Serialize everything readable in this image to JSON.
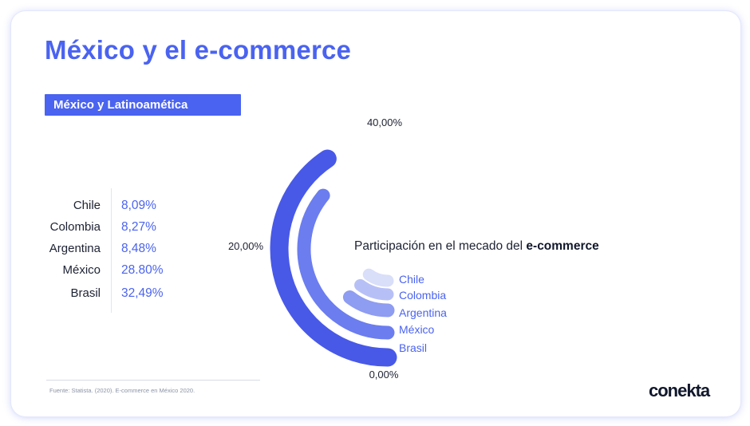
{
  "header": {
    "title": "México y el e-commerce",
    "badge": "México y Latinoamética"
  },
  "table": [
    {
      "country": "Chile",
      "value": "8,09%"
    },
    {
      "country": "Colombia",
      "value": "8,27%"
    },
    {
      "country": "Argentina",
      "value": "8,48%"
    },
    {
      "country": "México",
      "value": "28.80%"
    },
    {
      "country": "Brasil",
      "value": "32,49%"
    }
  ],
  "footer": {
    "source": "Fuente: Statista. (2020). E-commerce en México 2020.",
    "logo": "conekta"
  },
  "chart_data": {
    "type": "radial-bar",
    "title_prefix": "Participación en el mecado del ",
    "title_bold": "e-commerce",
    "tick_labels": [
      "40,00%",
      "20,00%",
      "0,00%"
    ],
    "range": [
      0,
      40
    ],
    "categories": [
      "Chile",
      "Colombia",
      "Argentina",
      "México",
      "Brasil"
    ],
    "values": [
      8.09,
      8.27,
      8.48,
      28.8,
      32.49
    ],
    "colors": [
      "#d9def9",
      "#b7c0f6",
      "#8e9cf1",
      "#6b7def",
      "#4859e8"
    ],
    "legend_color": "#4a63f0"
  }
}
